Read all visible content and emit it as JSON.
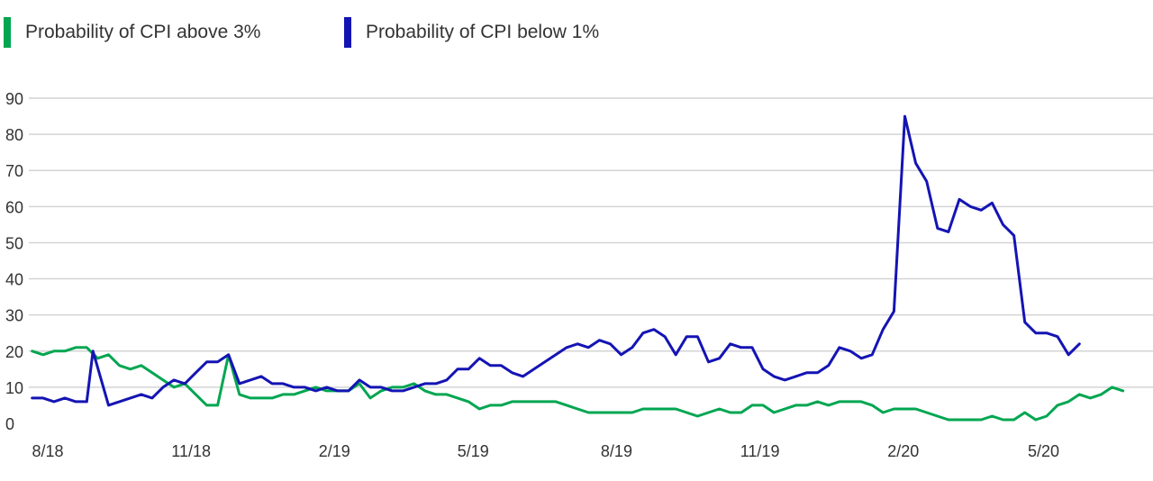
{
  "legend": [
    {
      "label": "Probability of CPI above 3%",
      "color": "#00a651"
    },
    {
      "label": "Probability of CPI below 1%",
      "color": "#1414b4"
    }
  ],
  "chart_data": {
    "type": "line",
    "ylim": [
      0,
      90
    ],
    "yticks": [
      0,
      10,
      20,
      30,
      40,
      50,
      60,
      70,
      80,
      90
    ],
    "x_tick_labels": [
      "8/18",
      "11/18",
      "2/19",
      "5/19",
      "8/19",
      "11/19",
      "2/20",
      "5/20"
    ],
    "x_tick_dates": [
      "2018-08-01",
      "2018-11-01",
      "2019-02-01",
      "2019-05-01",
      "2019-08-01",
      "2019-11-01",
      "2020-02-01",
      "2020-05-01"
    ],
    "grid": true,
    "series": [
      {
        "name": "Probability of CPI above 3%",
        "color": "#00a651",
        "points": [
          [
            "2018-07-22",
            20
          ],
          [
            "2018-07-29",
            19
          ],
          [
            "2018-08-05",
            20
          ],
          [
            "2018-08-12",
            20
          ],
          [
            "2018-08-19",
            21
          ],
          [
            "2018-08-26",
            21
          ],
          [
            "2018-09-02",
            18
          ],
          [
            "2018-09-09",
            19
          ],
          [
            "2018-09-16",
            16
          ],
          [
            "2018-09-23",
            15
          ],
          [
            "2018-09-30",
            16
          ],
          [
            "2018-10-07",
            14
          ],
          [
            "2018-10-14",
            12
          ],
          [
            "2018-10-21",
            10
          ],
          [
            "2018-10-28",
            11
          ],
          [
            "2018-11-04",
            8
          ],
          [
            "2018-11-11",
            5
          ],
          [
            "2018-11-18",
            5
          ],
          [
            "2018-11-25",
            19
          ],
          [
            "2018-12-02",
            8
          ],
          [
            "2018-12-09",
            7
          ],
          [
            "2018-12-16",
            7
          ],
          [
            "2018-12-23",
            7
          ],
          [
            "2018-12-30",
            8
          ],
          [
            "2019-01-06",
            8
          ],
          [
            "2019-01-13",
            9
          ],
          [
            "2019-01-20",
            10
          ],
          [
            "2019-01-27",
            9
          ],
          [
            "2019-02-03",
            9
          ],
          [
            "2019-02-10",
            9
          ],
          [
            "2019-02-17",
            11
          ],
          [
            "2019-02-24",
            7
          ],
          [
            "2019-03-03",
            9
          ],
          [
            "2019-03-10",
            10
          ],
          [
            "2019-03-17",
            10
          ],
          [
            "2019-03-24",
            11
          ],
          [
            "2019-03-31",
            9
          ],
          [
            "2019-04-07",
            8
          ],
          [
            "2019-04-14",
            8
          ],
          [
            "2019-04-21",
            7
          ],
          [
            "2019-04-28",
            6
          ],
          [
            "2019-05-05",
            4
          ],
          [
            "2019-05-12",
            5
          ],
          [
            "2019-05-19",
            5
          ],
          [
            "2019-05-26",
            6
          ],
          [
            "2019-06-02",
            6
          ],
          [
            "2019-06-09",
            6
          ],
          [
            "2019-06-16",
            6
          ],
          [
            "2019-06-23",
            6
          ],
          [
            "2019-06-30",
            5
          ],
          [
            "2019-07-07",
            4
          ],
          [
            "2019-07-14",
            3
          ],
          [
            "2019-07-21",
            3
          ],
          [
            "2019-07-28",
            3
          ],
          [
            "2019-08-04",
            3
          ],
          [
            "2019-08-11",
            3
          ],
          [
            "2019-08-18",
            4
          ],
          [
            "2019-08-25",
            4
          ],
          [
            "2019-09-01",
            4
          ],
          [
            "2019-09-08",
            4
          ],
          [
            "2019-09-15",
            3
          ],
          [
            "2019-09-22",
            2
          ],
          [
            "2019-09-29",
            3
          ],
          [
            "2019-10-06",
            4
          ],
          [
            "2019-10-13",
            3
          ],
          [
            "2019-10-20",
            3
          ],
          [
            "2019-10-27",
            5
          ],
          [
            "2019-11-03",
            5
          ],
          [
            "2019-11-10",
            3
          ],
          [
            "2019-11-17",
            4
          ],
          [
            "2019-11-24",
            5
          ],
          [
            "2019-12-01",
            5
          ],
          [
            "2019-12-08",
            6
          ],
          [
            "2019-12-15",
            5
          ],
          [
            "2019-12-22",
            6
          ],
          [
            "2019-12-29",
            6
          ],
          [
            "2020-01-05",
            6
          ],
          [
            "2020-01-12",
            5
          ],
          [
            "2020-01-19",
            3
          ],
          [
            "2020-01-26",
            4
          ],
          [
            "2020-02-02",
            4
          ],
          [
            "2020-02-09",
            4
          ],
          [
            "2020-02-16",
            3
          ],
          [
            "2020-02-23",
            2
          ],
          [
            "2020-03-01",
            1
          ],
          [
            "2020-03-08",
            1
          ],
          [
            "2020-03-15",
            1
          ],
          [
            "2020-03-22",
            1
          ],
          [
            "2020-03-29",
            2
          ],
          [
            "2020-04-05",
            1
          ],
          [
            "2020-04-12",
            1
          ],
          [
            "2020-04-19",
            3
          ],
          [
            "2020-04-26",
            1
          ],
          [
            "2020-05-03",
            2
          ],
          [
            "2020-05-10",
            5
          ],
          [
            "2020-05-17",
            6
          ],
          [
            "2020-05-24",
            8
          ],
          [
            "2020-05-31",
            7
          ],
          [
            "2020-06-07",
            8
          ],
          [
            "2020-06-14",
            10
          ],
          [
            "2020-06-21",
            9
          ]
        ]
      },
      {
        "name": "Probability of CPI below 1%",
        "color": "#1414b4",
        "points": [
          [
            "2018-07-22",
            7
          ],
          [
            "2018-07-29",
            7
          ],
          [
            "2018-08-05",
            6
          ],
          [
            "2018-08-12",
            7
          ],
          [
            "2018-08-19",
            6
          ],
          [
            "2018-08-26",
            6
          ],
          [
            "2018-08-30",
            20
          ],
          [
            "2018-09-09",
            5
          ],
          [
            "2018-09-16",
            6
          ],
          [
            "2018-09-23",
            7
          ],
          [
            "2018-09-30",
            8
          ],
          [
            "2018-10-07",
            7
          ],
          [
            "2018-10-14",
            10
          ],
          [
            "2018-10-21",
            12
          ],
          [
            "2018-10-28",
            11
          ],
          [
            "2018-11-04",
            14
          ],
          [
            "2018-11-11",
            17
          ],
          [
            "2018-11-18",
            17
          ],
          [
            "2018-11-25",
            19
          ],
          [
            "2018-12-02",
            11
          ],
          [
            "2018-12-09",
            12
          ],
          [
            "2018-12-16",
            13
          ],
          [
            "2018-12-23",
            11
          ],
          [
            "2018-12-30",
            11
          ],
          [
            "2019-01-06",
            10
          ],
          [
            "2019-01-13",
            10
          ],
          [
            "2019-01-20",
            9
          ],
          [
            "2019-01-27",
            10
          ],
          [
            "2019-02-03",
            9
          ],
          [
            "2019-02-10",
            9
          ],
          [
            "2019-02-17",
            12
          ],
          [
            "2019-02-24",
            10
          ],
          [
            "2019-03-03",
            10
          ],
          [
            "2019-03-10",
            9
          ],
          [
            "2019-03-17",
            9
          ],
          [
            "2019-03-24",
            10
          ],
          [
            "2019-03-31",
            11
          ],
          [
            "2019-04-07",
            11
          ],
          [
            "2019-04-14",
            12
          ],
          [
            "2019-04-21",
            15
          ],
          [
            "2019-04-28",
            15
          ],
          [
            "2019-05-05",
            18
          ],
          [
            "2019-05-12",
            16
          ],
          [
            "2019-05-19",
            16
          ],
          [
            "2019-05-26",
            14
          ],
          [
            "2019-06-02",
            13
          ],
          [
            "2019-06-09",
            15
          ],
          [
            "2019-06-16",
            17
          ],
          [
            "2019-06-23",
            19
          ],
          [
            "2019-06-30",
            21
          ],
          [
            "2019-07-07",
            22
          ],
          [
            "2019-07-14",
            21
          ],
          [
            "2019-07-21",
            23
          ],
          [
            "2019-07-28",
            22
          ],
          [
            "2019-08-04",
            19
          ],
          [
            "2019-08-11",
            21
          ],
          [
            "2019-08-18",
            25
          ],
          [
            "2019-08-25",
            26
          ],
          [
            "2019-09-01",
            24
          ],
          [
            "2019-09-08",
            19
          ],
          [
            "2019-09-15",
            24
          ],
          [
            "2019-09-22",
            24
          ],
          [
            "2019-09-29",
            17
          ],
          [
            "2019-10-06",
            18
          ],
          [
            "2019-10-13",
            22
          ],
          [
            "2019-10-20",
            21
          ],
          [
            "2019-10-27",
            21
          ],
          [
            "2019-11-03",
            15
          ],
          [
            "2019-11-10",
            13
          ],
          [
            "2019-11-17",
            12
          ],
          [
            "2019-11-24",
            13
          ],
          [
            "2019-12-01",
            14
          ],
          [
            "2019-12-08",
            14
          ],
          [
            "2019-12-15",
            16
          ],
          [
            "2019-12-22",
            21
          ],
          [
            "2019-12-29",
            20
          ],
          [
            "2020-01-05",
            18
          ],
          [
            "2020-01-12",
            19
          ],
          [
            "2020-01-19",
            26
          ],
          [
            "2020-01-26",
            31
          ],
          [
            "2020-02-02",
            85
          ],
          [
            "2020-02-09",
            72
          ],
          [
            "2020-02-16",
            67
          ],
          [
            "2020-02-23",
            54
          ],
          [
            "2020-03-01",
            53
          ],
          [
            "2020-03-08",
            62
          ],
          [
            "2020-03-15",
            60
          ],
          [
            "2020-03-22",
            59
          ],
          [
            "2020-03-29",
            61
          ],
          [
            "2020-04-05",
            55
          ],
          [
            "2020-04-12",
            52
          ],
          [
            "2020-04-19",
            28
          ],
          [
            "2020-04-26",
            25
          ],
          [
            "2020-05-03",
            25
          ],
          [
            "2020-05-10",
            24
          ],
          [
            "2020-05-17",
            19
          ],
          [
            "2020-05-24",
            22
          ]
        ]
      }
    ]
  }
}
